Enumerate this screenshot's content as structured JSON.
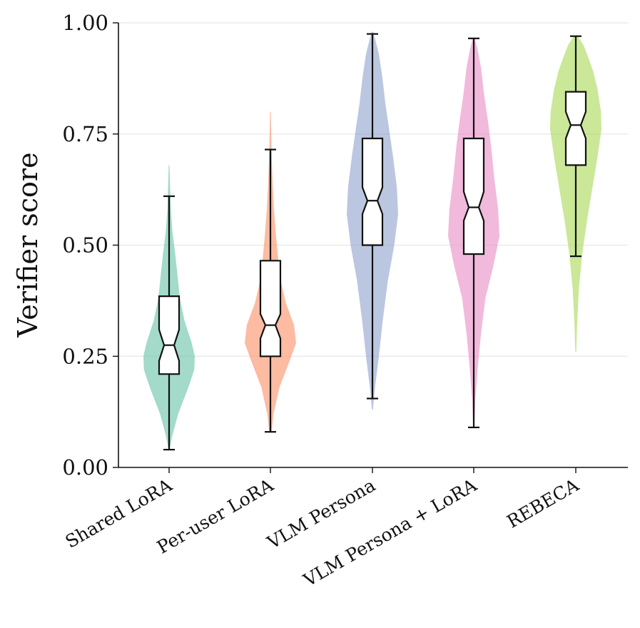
{
  "chart_data": {
    "type": "violin",
    "ylabel": "Verifier score",
    "xlabel": "",
    "ylim": [
      0,
      1
    ],
    "yticks": [
      "0.00",
      "0.25",
      "0.50",
      "0.75",
      "1.00"
    ],
    "ytick_values": [
      0,
      0.25,
      0.5,
      0.75,
      1.0
    ],
    "grid": "horizontal",
    "categories": [
      "Shared LoRA",
      "Per-user LoRA",
      "VLM Persona",
      "VLM Persona + LoRA",
      "REBECA"
    ],
    "series": [
      {
        "name": "Shared LoRA",
        "color": "#66c2a5",
        "whisker_low": 0.04,
        "q1": 0.21,
        "median": 0.275,
        "q3": 0.385,
        "whisker_high": 0.61,
        "notch_low": 0.24,
        "notch_high": 0.31,
        "kde_min": 0.04,
        "kde_max": 0.68,
        "density": [
          [
            0.04,
            0.02
          ],
          [
            0.07,
            0.12
          ],
          [
            0.12,
            0.35
          ],
          [
            0.18,
            0.75
          ],
          [
            0.22,
            0.98
          ],
          [
            0.25,
            1.0
          ],
          [
            0.28,
            0.88
          ],
          [
            0.33,
            0.6
          ],
          [
            0.38,
            0.42
          ],
          [
            0.43,
            0.33
          ],
          [
            0.48,
            0.24
          ],
          [
            0.53,
            0.13
          ],
          [
            0.58,
            0.07
          ],
          [
            0.63,
            0.04
          ],
          [
            0.68,
            0.015
          ]
        ]
      },
      {
        "name": "Per-user LoRA",
        "color": "#fc8d62",
        "whisker_low": 0.08,
        "q1": 0.25,
        "median": 0.32,
        "q3": 0.465,
        "whisker_high": 0.715,
        "notch_low": 0.29,
        "notch_high": 0.345,
        "kde_min": 0.08,
        "kde_max": 0.8,
        "density": [
          [
            0.08,
            0.05
          ],
          [
            0.12,
            0.12
          ],
          [
            0.18,
            0.35
          ],
          [
            0.24,
            0.75
          ],
          [
            0.28,
            1.0
          ],
          [
            0.32,
            0.92
          ],
          [
            0.37,
            0.6
          ],
          [
            0.42,
            0.4
          ],
          [
            0.47,
            0.3
          ],
          [
            0.52,
            0.22
          ],
          [
            0.58,
            0.14
          ],
          [
            0.64,
            0.09
          ],
          [
            0.7,
            0.05
          ],
          [
            0.75,
            0.03
          ],
          [
            0.8,
            0.015
          ]
        ]
      },
      {
        "name": "VLM Persona",
        "color": "#8da0cb",
        "whisker_low": 0.155,
        "q1": 0.5,
        "median": 0.6,
        "q3": 0.74,
        "whisker_high": 0.975,
        "notch_low": 0.57,
        "notch_high": 0.63,
        "kde_min": 0.13,
        "kde_max": 0.98,
        "density": [
          [
            0.13,
            0.02
          ],
          [
            0.18,
            0.1
          ],
          [
            0.25,
            0.25
          ],
          [
            0.33,
            0.4
          ],
          [
            0.42,
            0.6
          ],
          [
            0.5,
            0.85
          ],
          [
            0.57,
            1.0
          ],
          [
            0.63,
            0.95
          ],
          [
            0.7,
            0.8
          ],
          [
            0.76,
            0.65
          ],
          [
            0.82,
            0.5
          ],
          [
            0.88,
            0.38
          ],
          [
            0.93,
            0.25
          ],
          [
            0.96,
            0.12
          ],
          [
            0.98,
            0.03
          ]
        ]
      },
      {
        "name": "VLM Persona + LoRA",
        "color": "#e78ac3",
        "whisker_low": 0.09,
        "q1": 0.48,
        "median": 0.585,
        "q3": 0.74,
        "whisker_high": 0.965,
        "notch_low": 0.555,
        "notch_high": 0.62,
        "kde_min": 0.09,
        "kde_max": 0.965,
        "density": [
          [
            0.09,
            0.02
          ],
          [
            0.15,
            0.06
          ],
          [
            0.22,
            0.15
          ],
          [
            0.3,
            0.28
          ],
          [
            0.38,
            0.45
          ],
          [
            0.45,
            0.75
          ],
          [
            0.52,
            1.0
          ],
          [
            0.58,
            0.95
          ],
          [
            0.65,
            0.8
          ],
          [
            0.72,
            0.68
          ],
          [
            0.78,
            0.55
          ],
          [
            0.84,
            0.4
          ],
          [
            0.9,
            0.28
          ],
          [
            0.94,
            0.15
          ],
          [
            0.965,
            0.04
          ]
        ]
      },
      {
        "name": "REBECA",
        "color": "#a6d854",
        "whisker_low": 0.475,
        "q1": 0.68,
        "median": 0.77,
        "q3": 0.845,
        "whisker_high": 0.97,
        "notch_low": 0.74,
        "notch_high": 0.8,
        "kde_min": 0.26,
        "kde_max": 0.97,
        "density": [
          [
            0.26,
            0.02
          ],
          [
            0.32,
            0.05
          ],
          [
            0.4,
            0.12
          ],
          [
            0.48,
            0.25
          ],
          [
            0.56,
            0.45
          ],
          [
            0.63,
            0.65
          ],
          [
            0.7,
            0.85
          ],
          [
            0.76,
            1.0
          ],
          [
            0.8,
            0.98
          ],
          [
            0.85,
            0.85
          ],
          [
            0.89,
            0.68
          ],
          [
            0.92,
            0.5
          ],
          [
            0.95,
            0.3
          ],
          [
            0.97,
            0.08
          ]
        ]
      }
    ]
  }
}
